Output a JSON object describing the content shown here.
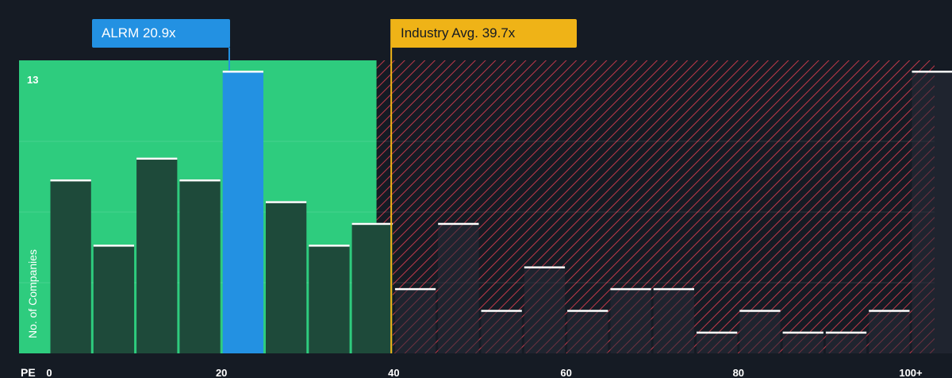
{
  "company_label": "ALRM 20.9x",
  "industry_label": "Industry Avg. 39.7x",
  "colors": {
    "background": "#151b24",
    "below_zone": "#2ecc7e",
    "bar_dark": "#1e4a3a",
    "company_bar": "#2391e2",
    "industry_line": "#efb317",
    "hatch": "#c0394a",
    "bar_cap": "#ffffff"
  },
  "chart_data": {
    "type": "bar",
    "x_axis_title": "PE",
    "ylabel": "No. of Companies",
    "x_tick_labels": [
      "0",
      "20",
      "40",
      "60",
      "80",
      "100+"
    ],
    "x_ticks": [
      0,
      20,
      40,
      60,
      80,
      100
    ],
    "y_max_label": "13",
    "ylim": [
      0,
      13
    ],
    "bin_width": 5,
    "bins": [
      {
        "from": 0,
        "to": 5,
        "value": 8
      },
      {
        "from": 5,
        "to": 10,
        "value": 5
      },
      {
        "from": 10,
        "to": 15,
        "value": 9
      },
      {
        "from": 15,
        "to": 20,
        "value": 8
      },
      {
        "from": 20,
        "to": 25,
        "value": 13
      },
      {
        "from": 25,
        "to": 30,
        "value": 7
      },
      {
        "from": 30,
        "to": 35,
        "value": 5
      },
      {
        "from": 35,
        "to": 40,
        "value": 6
      },
      {
        "from": 40,
        "to": 45,
        "value": 3
      },
      {
        "from": 45,
        "to": 50,
        "value": 6
      },
      {
        "from": 50,
        "to": 55,
        "value": 2
      },
      {
        "from": 55,
        "to": 60,
        "value": 4
      },
      {
        "from": 60,
        "to": 65,
        "value": 2
      },
      {
        "from": 65,
        "to": 70,
        "value": 3
      },
      {
        "from": 70,
        "to": 75,
        "value": 3
      },
      {
        "from": 75,
        "to": 80,
        "value": 1
      },
      {
        "from": 80,
        "to": 85,
        "value": 2
      },
      {
        "from": 85,
        "to": 90,
        "value": 1
      },
      {
        "from": 90,
        "to": 95,
        "value": 1
      },
      {
        "from": 95,
        "to": 100,
        "value": 2
      },
      {
        "from": 100,
        "to": 105,
        "value": 13
      }
    ],
    "company_value": 20.9,
    "industry_avg": 39.7,
    "highlight_bin_from": 20,
    "below_zone_to": 38
  }
}
